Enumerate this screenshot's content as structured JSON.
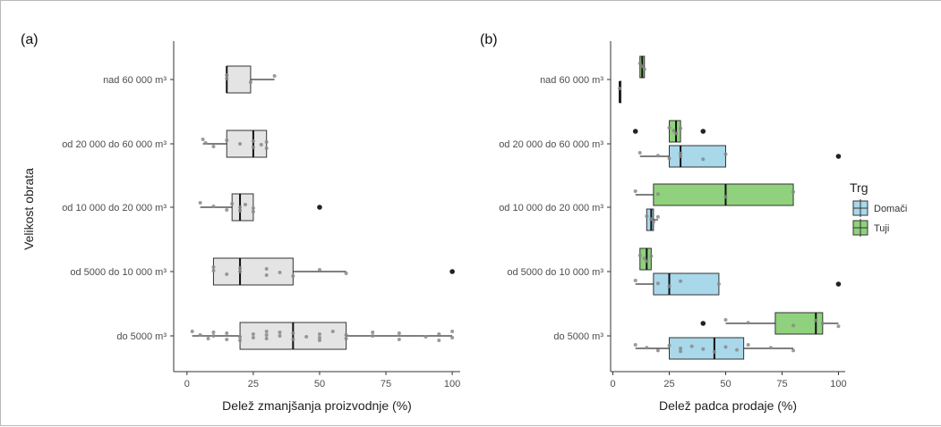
{
  "figure": {
    "y_axis_title": "Velikost obrata",
    "legend": {
      "title": "Trg",
      "entries": [
        {
          "label": "Domači",
          "color": "#a8d8ea"
        },
        {
          "label": "Tuji",
          "color": "#8fd17c"
        }
      ]
    }
  },
  "chart_data": [
    {
      "type": "box",
      "panel_label": "(a)",
      "xlabel": "Delež zmanjšanja proizvodnje (%)",
      "ylabel": "Velikost obrata",
      "xlim": [
        -5,
        103
      ],
      "xticks": [
        0,
        25,
        50,
        75,
        100
      ],
      "grid": false,
      "box_color": "#e4e4e4",
      "categories": [
        "nad 60 000 m³",
        "od 20 000 do 60 000 m³",
        "od 10 000 do 20 000 m³",
        "od 5000 do 10 000 m³",
        "do 5000 m³"
      ],
      "series": [
        {
          "boxes": [
            {
              "category": "nad 60 000 m³",
              "whisker_low": 15,
              "q1": 15,
              "median": 15,
              "q3": 24,
              "whisker_high": 33,
              "outliers": [],
              "points": [
                15,
                15,
                24,
                33
              ]
            },
            {
              "category": "od 20 000 do 60 000 m³",
              "whisker_low": 6,
              "q1": 15,
              "median": 25,
              "q3": 30,
              "whisker_high": 30,
              "outliers": [],
              "points": [
                6,
                7,
                10,
                15,
                20,
                25,
                25,
                28,
                30,
                30
              ]
            },
            {
              "category": "od 10 000 do 20 000 m³",
              "whisker_low": 5,
              "q1": 17,
              "median": 20,
              "q3": 25,
              "whisker_high": 25,
              "outliers": [
                50
              ],
              "points": [
                5,
                10,
                15,
                17,
                20,
                20,
                22,
                25,
                25
              ]
            },
            {
              "category": "od 5000 do 10 000 m³",
              "whisker_low": 10,
              "q1": 10,
              "median": 20,
              "q3": 40,
              "whisker_high": 60,
              "outliers": [
                100
              ],
              "points": [
                10,
                10,
                15,
                20,
                20,
                30,
                30,
                35,
                40,
                50,
                60
              ]
            },
            {
              "category": "do 5000 m³",
              "whisker_low": 2,
              "q1": 20,
              "median": 40,
              "q3": 60,
              "whisker_high": 100,
              "outliers": [],
              "points": [
                2,
                5,
                8,
                10,
                10,
                15,
                15,
                20,
                20,
                25,
                25,
                30,
                30,
                30,
                35,
                35,
                40,
                40,
                45,
                50,
                50,
                50,
                55,
                60,
                60,
                70,
                70,
                80,
                80,
                90,
                95,
                95,
                100,
                100
              ]
            }
          ]
        }
      ]
    },
    {
      "type": "box",
      "panel_label": "(b)",
      "xlabel": "Delež padca prodaje (%)",
      "xlim": [
        -1,
        103
      ],
      "xticks": [
        0,
        25,
        50,
        75,
        100
      ],
      "grid": false,
      "legend_position": "right",
      "categories": [
        "nad 60 000 m³",
        "od 20 000 do 60 000 m³",
        "od 10 000 do 20 000 m³",
        "od 5000 do 10 000 m³",
        "do 5000 m³"
      ],
      "series": [
        {
          "name": "Domači",
          "color": "#a8d8ea",
          "boxes": [
            {
              "category": "nad 60 000 m³",
              "whisker_low": 3,
              "q1": 3,
              "median": 3,
              "q3": 3,
              "whisker_high": 3,
              "outliers": [],
              "points": [
                3
              ]
            },
            {
              "category": "od 20 000 do 60 000 m³",
              "whisker_low": 12,
              "q1": 25,
              "median": 30,
              "q3": 50,
              "whisker_high": 50,
              "outliers": [
                100
              ],
              "points": [
                12,
                20,
                25,
                30,
                30,
                40,
                50
              ]
            },
            {
              "category": "od 10 000 do 20 000 m³",
              "whisker_low": 15,
              "q1": 15,
              "median": 17,
              "q3": 18,
              "whisker_high": 20,
              "outliers": [],
              "points": [
                15,
                17,
                18,
                20
              ]
            },
            {
              "category": "od 5000 do 10 000 m³",
              "whisker_low": 10,
              "q1": 18,
              "median": 25,
              "q3": 47,
              "whisker_high": 47,
              "outliers": [
                100
              ],
              "points": [
                10,
                20,
                25,
                30,
                47
              ]
            },
            {
              "category": "do 5000 m³",
              "whisker_low": 10,
              "q1": 25,
              "median": 45,
              "q3": 58,
              "whisker_high": 80,
              "outliers": [],
              "points": [
                10,
                15,
                20,
                25,
                30,
                30,
                35,
                40,
                45,
                50,
                55,
                60,
                70,
                80
              ]
            }
          ]
        },
        {
          "name": "Tuji",
          "color": "#8fd17c",
          "boxes": [
            {
              "category": "nad 60 000 m³",
              "whisker_low": 12,
              "q1": 12,
              "median": 13,
              "q3": 14,
              "whisker_high": 14,
              "outliers": [],
              "points": [
                12,
                13,
                14
              ]
            },
            {
              "category": "od 20 000 do 60 000 m³",
              "whisker_low": 25,
              "q1": 25,
              "median": 28,
              "q3": 30,
              "whisker_high": 30,
              "outliers": [
                10,
                40
              ],
              "points": [
                25,
                27,
                28,
                30
              ]
            },
            {
              "category": "od 10 000 do 20 000 m³",
              "whisker_low": 10,
              "q1": 18,
              "median": 50,
              "q3": 80,
              "whisker_high": 80,
              "outliers": [],
              "points": [
                10,
                20,
                50,
                80
              ]
            },
            {
              "category": "od 5000 do 10 000 m³",
              "whisker_low": 12,
              "q1": 12,
              "median": 15,
              "q3": 17,
              "whisker_high": 17,
              "outliers": [],
              "points": [
                12,
                14,
                15,
                17
              ]
            },
            {
              "category": "do 5000 m³",
              "whisker_low": 50,
              "q1": 72,
              "median": 90,
              "q3": 93,
              "whisker_high": 100,
              "outliers": [
                40
              ],
              "points": [
                50,
                60,
                80,
                90,
                93,
                100
              ]
            }
          ]
        }
      ]
    }
  ]
}
